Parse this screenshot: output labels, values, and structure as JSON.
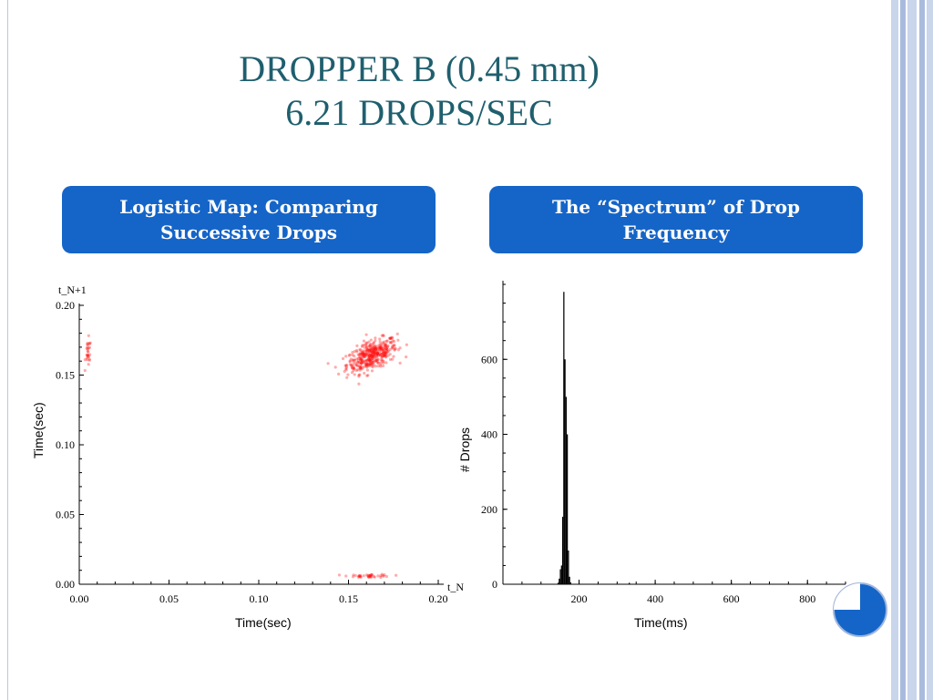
{
  "slide": {
    "title_line1": "DROPPER B (0.45 mm)",
    "title_line2": "6.21 DROPS/SEC"
  },
  "left_panel": {
    "heading_line1": "Logistic Map: Comparing",
    "heading_line2": "Successive Drops"
  },
  "right_panel": {
    "heading_line1": "The “Spectrum” of Drop",
    "heading_line2": "Frequency"
  },
  "colors": {
    "accent": "#1565c8",
    "title": "#1f5f6e",
    "scatter_points": "#ff1010",
    "histogram_bars": "#000000",
    "frame": "#b9c7e0"
  },
  "chart_data": [
    {
      "type": "scatter",
      "xlabel": "Time(sec)",
      "ylabel": "Time(sec)",
      "x_axis_tag": "t_N",
      "y_axis_tag": "t_N+1",
      "xlim": [
        0,
        0.2
      ],
      "ylim": [
        0,
        0.2
      ],
      "x_ticks": [
        "0.00",
        "0.05",
        "0.10",
        "0.15",
        "0.20"
      ],
      "y_ticks": [
        "0.00",
        "0.05",
        "0.10",
        "0.15",
        "0.20"
      ],
      "clusters": [
        {
          "name": "",
          "cx": 0.163,
          "cy": 0.164,
          "sx": 0.007,
          "sy": 0.006,
          "n": 420,
          "rho": 0.55
        },
        {
          "name": "",
          "cx": 0.005,
          "cy": 0.166,
          "sx": 0.0008,
          "sy": 0.005,
          "n": 28,
          "rho": 0
        },
        {
          "name": "",
          "cx": 0.162,
          "cy": 0.006,
          "sx": 0.006,
          "sy": 0.0006,
          "n": 40,
          "rho": 0
        }
      ]
    },
    {
      "type": "bar",
      "xlabel": "Time(ms)",
      "ylabel": "# Drops",
      "xlim": [
        0,
        900
      ],
      "ylim": [
        0,
        800
      ],
      "x_ticks": [
        "200",
        "400",
        "600",
        "800"
      ],
      "y_ticks": [
        "0",
        "200",
        "400",
        "600"
      ],
      "bins": [
        {
          "x": 145,
          "y": 4
        },
        {
          "x": 148,
          "y": 15
        },
        {
          "x": 151,
          "y": 40
        },
        {
          "x": 154,
          "y": 50
        },
        {
          "x": 157,
          "y": 180
        },
        {
          "x": 160,
          "y": 780
        },
        {
          "x": 163,
          "y": 600
        },
        {
          "x": 166,
          "y": 500
        },
        {
          "x": 169,
          "y": 400
        },
        {
          "x": 172,
          "y": 90
        },
        {
          "x": 175,
          "y": 20
        },
        {
          "x": 178,
          "y": 5
        },
        {
          "x": 332,
          "y": 4
        }
      ]
    }
  ]
}
